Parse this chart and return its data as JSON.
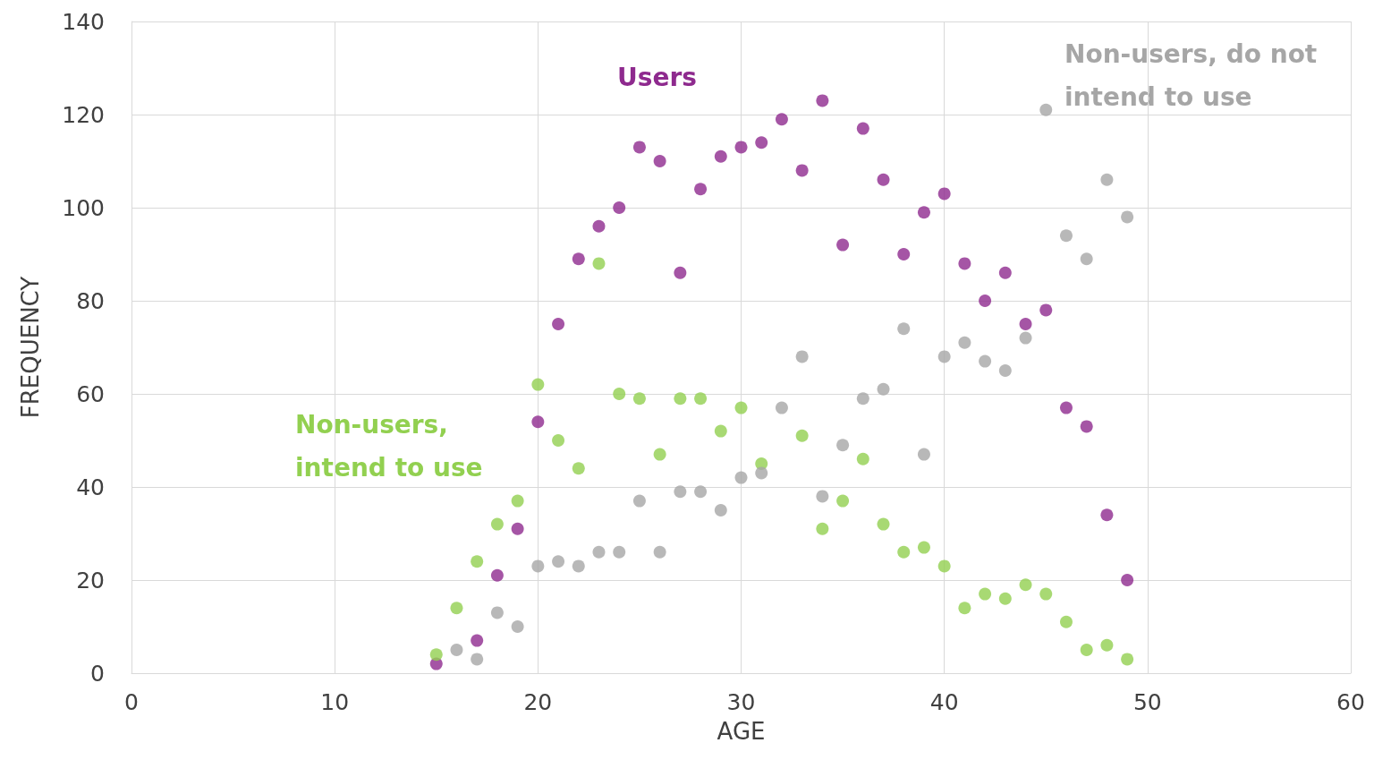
{
  "chart_data": {
    "type": "scatter",
    "xlabel": "AGE",
    "ylabel": "FREQUENCY",
    "x": [
      15,
      16,
      17,
      18,
      19,
      20,
      21,
      22,
      23,
      24,
      25,
      26,
      27,
      28,
      29,
      30,
      31,
      32,
      33,
      34,
      35,
      36,
      37,
      38,
      39,
      40,
      41,
      42,
      43,
      44,
      45,
      46,
      47,
      48,
      49
    ],
    "series": [
      {
        "name": "Users",
        "color": "#8e2a8e",
        "values": [
          2,
          null,
          7,
          21,
          31,
          54,
          75,
          89,
          96,
          100,
          113,
          110,
          86,
          104,
          111,
          113,
          114,
          119,
          108,
          123,
          92,
          117,
          106,
          90,
          99,
          103,
          88,
          80,
          86,
          75,
          78,
          57,
          53,
          34,
          20
        ]
      },
      {
        "name": "Non-users, intend to use",
        "color": "#92d050",
        "values": [
          4,
          14,
          24,
          32,
          37,
          62,
          50,
          44,
          88,
          60,
          59,
          47,
          59,
          59,
          52,
          57,
          45,
          null,
          51,
          31,
          37,
          46,
          32,
          26,
          27,
          23,
          14,
          17,
          16,
          19,
          17,
          11,
          5,
          6,
          3
        ]
      },
      {
        "name": "Non-users, do not intend to use",
        "color": "#a6a6a6",
        "values": [
          null,
          5,
          3,
          13,
          10,
          23,
          24,
          23,
          26,
          26,
          37,
          26,
          39,
          39,
          35,
          42,
          43,
          57,
          68,
          38,
          49,
          59,
          61,
          74,
          47,
          68,
          71,
          67,
          65,
          72,
          121,
          94,
          89,
          106,
          98
        ]
      }
    ],
    "xlim": [
      0,
      60
    ],
    "xticks": [
      0,
      10,
      20,
      30,
      40,
      50,
      60
    ],
    "ylim": [
      0,
      140
    ],
    "yticks": [
      0,
      20,
      40,
      60,
      80,
      100,
      120,
      140
    ],
    "grid": true,
    "legend": false,
    "marker": "circle"
  }
}
